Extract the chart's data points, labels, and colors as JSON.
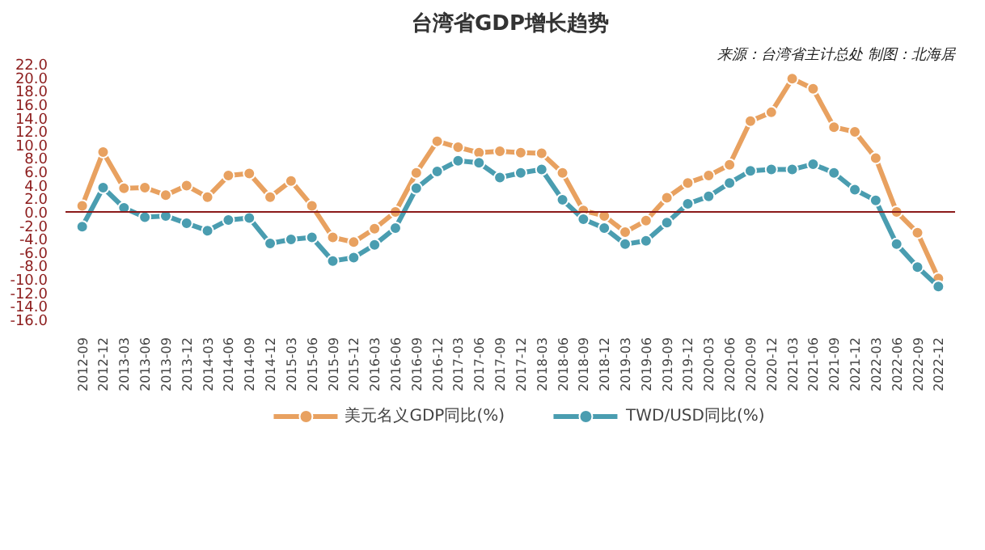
{
  "chart_data": {
    "type": "line",
    "title": "台湾省GDP增长趋势",
    "annotations": [
      "来源：台湾省主计总处 制图：北海居"
    ],
    "categories": [
      "2012-09",
      "2012-12",
      "2013-03",
      "2013-06",
      "2013-09",
      "2013-12",
      "2014-03",
      "2014-06",
      "2014-09",
      "2014-12",
      "2015-03",
      "2015-06",
      "2015-09",
      "2015-12",
      "2016-03",
      "2016-06",
      "2016-09",
      "2016-12",
      "2017-03",
      "2017-06",
      "2017-09",
      "2017-12",
      "2018-03",
      "2018-06",
      "2018-09",
      "2018-12",
      "2019-03",
      "2019-06",
      "2019-09",
      "2019-12",
      "2020-03",
      "2020-06",
      "2020-09",
      "2020-12",
      "2021-03",
      "2021-06",
      "2021-09",
      "2021-12",
      "2022-03",
      "2022-06",
      "2022-09",
      "2022-12"
    ],
    "series": [
      {
        "name": "美元名义GDP同比(%)",
        "color": "#e8a160",
        "values": [
          0.9,
          8.9,
          3.5,
          3.6,
          2.5,
          3.9,
          2.2,
          5.4,
          5.7,
          2.2,
          4.6,
          0.9,
          -3.8,
          -4.5,
          -2.5,
          0.0,
          5.8,
          10.5,
          9.6,
          8.8,
          9.0,
          8.8,
          8.7,
          5.8,
          0.2,
          -0.6,
          -3.0,
          -1.3,
          2.1,
          4.3,
          5.4,
          7.0,
          13.5,
          14.8,
          19.8,
          18.3,
          12.6,
          11.9,
          8.0,
          0.0,
          -3.1,
          -9.9
        ]
      },
      {
        "name": "TWD/USD同比(%)",
        "color": "#4a9db0",
        "values": [
          -2.2,
          3.6,
          0.6,
          -0.8,
          -0.6,
          -1.7,
          -2.8,
          -1.2,
          -0.9,
          -4.7,
          -4.1,
          -3.8,
          -7.3,
          -6.8,
          -4.9,
          -2.4,
          3.5,
          6.0,
          7.6,
          7.3,
          5.1,
          5.8,
          6.3,
          1.8,
          -1.1,
          -2.4,
          -4.8,
          -4.3,
          -1.6,
          1.2,
          2.3,
          4.3,
          6.1,
          6.3,
          6.3,
          7.1,
          5.8,
          3.3,
          1.7,
          -4.8,
          -8.2,
          -11.1
        ]
      }
    ],
    "ylim": [
      -16,
      22
    ],
    "yticks": [
      {
        "value": -16,
        "label": "-16.0"
      },
      {
        "value": -14,
        "label": "-14.0"
      },
      {
        "value": -12,
        "label": "-12.0"
      },
      {
        "value": -10,
        "label": "-10.0"
      },
      {
        "value": -8,
        "label": "-8.0"
      },
      {
        "value": -6,
        "label": "-6.0"
      },
      {
        "value": -4,
        "label": "-4.0"
      },
      {
        "value": -2,
        "label": "-2.0"
      },
      {
        "value": 0,
        "label": "0.0"
      },
      {
        "value": 2,
        "label": "2.0"
      },
      {
        "value": 4,
        "label": "4.0"
      },
      {
        "value": 6,
        "label": "6.0"
      },
      {
        "value": 8,
        "label": "8.0"
      },
      {
        "value": 10,
        "label": "10.0"
      },
      {
        "value": 12,
        "label": "12.0"
      },
      {
        "value": 14,
        "label": "14.0"
      },
      {
        "value": 16,
        "label": "16.0"
      },
      {
        "value": 18,
        "label": "18.0"
      },
      {
        "value": 20,
        "label": "20.0"
      },
      {
        "value": 22,
        "label": "22.0"
      }
    ],
    "ref_lines": [
      {
        "axis": "y",
        "value": 0,
        "color": "#8b1a1a"
      }
    ],
    "grid": false,
    "legend": "bottom",
    "marker": "circle",
    "line_style": "solid"
  }
}
